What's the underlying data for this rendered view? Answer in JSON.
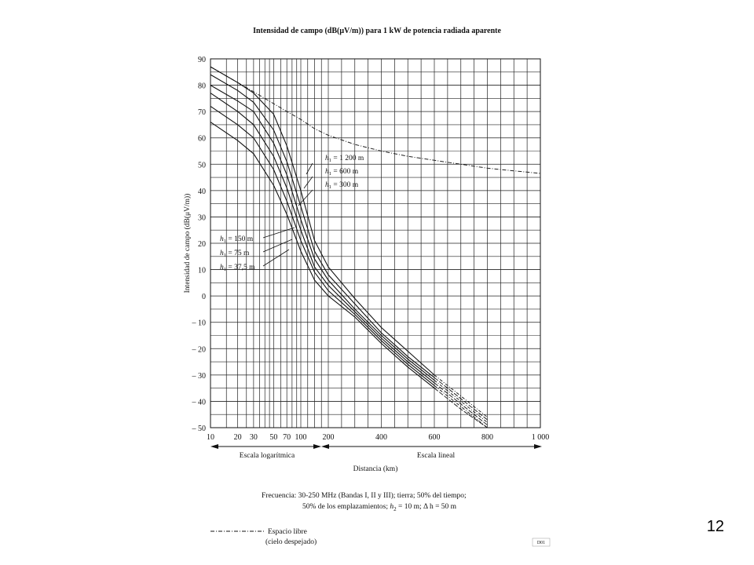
{
  "slide": {
    "page_number": "12"
  },
  "chart_data": {
    "type": "line",
    "title": "Intensidad de campo (dB(μV/m)) para 1 kW de potencia radiada aparente",
    "ylabel": "Intensidad de campo (dB(μV/m))",
    "xlabel": "Distancia (km)",
    "ylim": [
      -50,
      90
    ],
    "grid": true,
    "y_ticks": [
      "90",
      "80",
      "70",
      "60",
      "50",
      "40",
      "30",
      "20",
      "10",
      "0",
      "– 10",
      "– 20",
      "– 30",
      "– 40",
      "– 50"
    ],
    "x_ticks_log": [
      {
        "x": 10,
        "label": "10"
      },
      {
        "x": 20,
        "label": "20"
      },
      {
        "x": 30,
        "label": "30"
      },
      {
        "x": 50,
        "label": "50"
      },
      {
        "x": 70,
        "label": "70"
      },
      {
        "x": 100,
        "label": "100"
      }
    ],
    "x_ticks_lin": [
      {
        "x": 200,
        "label": "200"
      },
      {
        "x": 400,
        "label": "400"
      },
      {
        "x": 600,
        "label": "600"
      },
      {
        "x": 800,
        "label": "800"
      },
      {
        "x": 1000,
        "label": "1 000"
      }
    ],
    "scale_labels": {
      "log": "Escala logarítmica",
      "lin": "Escala lineal"
    },
    "free_space": {
      "name": "Espacio libre",
      "x": [
        10,
        20,
        30,
        50,
        70,
        100,
        150,
        200,
        300,
        400,
        500,
        600,
        700,
        800,
        900,
        1000
      ],
      "y": [
        87,
        81,
        77.5,
        73,
        70,
        67,
        63.5,
        61,
        57.5,
        55,
        53,
        51.5,
        50,
        48.5,
        47.5,
        46.5
      ]
    },
    "series": [
      {
        "name": "h1 = 1 200 m",
        "x": [
          10,
          20,
          30,
          50,
          70,
          100,
          150,
          200,
          300,
          400,
          500,
          600,
          700,
          800,
          900
        ],
        "y": [
          87,
          81,
          77,
          69,
          57,
          40,
          21,
          11,
          -1,
          -12,
          -21,
          -30,
          -38,
          -46,
          -53
        ]
      },
      {
        "name": "h1 = 600 m",
        "x": [
          10,
          20,
          30,
          50,
          70,
          100,
          150,
          200,
          300,
          400,
          500,
          600,
          700,
          800,
          900
        ],
        "y": [
          84,
          78,
          73.5,
          63,
          51,
          34,
          17,
          8,
          -3,
          -14,
          -23,
          -31,
          -39,
          -47,
          -54
        ]
      },
      {
        "name": "h1 = 300 m",
        "x": [
          10,
          20,
          30,
          50,
          70,
          100,
          150,
          200,
          300,
          400,
          500,
          600,
          700,
          800,
          900
        ],
        "y": [
          80,
          74,
          70,
          58,
          46,
          29,
          14,
          6,
          -5,
          -15,
          -24,
          -32,
          -40,
          -48,
          -55
        ]
      },
      {
        "name": "h1 = 150 m",
        "x": [
          10,
          20,
          30,
          50,
          70,
          100,
          150,
          200,
          300,
          400,
          500,
          600,
          700,
          800,
          900
        ],
        "y": [
          77,
          70,
          65,
          53,
          41,
          25,
          11,
          4,
          -6,
          -16,
          -25,
          -33,
          -41,
          -49,
          -56
        ]
      },
      {
        "name": "h1 = 75 m",
        "x": [
          10,
          20,
          30,
          50,
          70,
          100,
          150,
          200,
          300,
          400,
          500,
          600,
          700,
          800,
          900
        ],
        "y": [
          72,
          65,
          60,
          48,
          36,
          21,
          9,
          2,
          -7,
          -17,
          -26,
          -34,
          -42,
          -50,
          -57
        ]
      },
      {
        "name": "h1 = 37,5 m",
        "x": [
          10,
          20,
          30,
          50,
          70,
          100,
          150,
          200,
          300,
          400,
          500,
          600,
          700,
          800,
          900
        ],
        "y": [
          66,
          59,
          54,
          42,
          31,
          17,
          6,
          0,
          -8,
          -18,
          -27,
          -35,
          -43,
          -51,
          -58
        ]
      }
    ],
    "curve_labels": [
      {
        "h": "h",
        "sub": "1",
        "eq": "= 1 200 m"
      },
      {
        "h": "h",
        "sub": "1",
        "eq": "=    600 m"
      },
      {
        "h": "h",
        "sub": "1",
        "eq": "=    300 m"
      },
      {
        "h": "h",
        "sub": "1",
        "eq": "= 150    m"
      },
      {
        "h": "h",
        "sub": "1",
        "eq": "=   75    m"
      },
      {
        "h": "h",
        "sub": "1",
        "eq": "=   37,5 m"
      }
    ],
    "notes": {
      "line1": "Frecuencia:  30-250 MHz (Bandas I, II y III); tierra; 50% del tiempo;",
      "line2a": "50% de los emplazamientos;  ",
      "line2h": "h",
      "line2sub": "2",
      "line2b": " = 10 m;  Δ h = 50 m",
      "legend_main": "Espacio libre",
      "legend_sub": "(cielo despejado)",
      "code": "D01"
    }
  }
}
